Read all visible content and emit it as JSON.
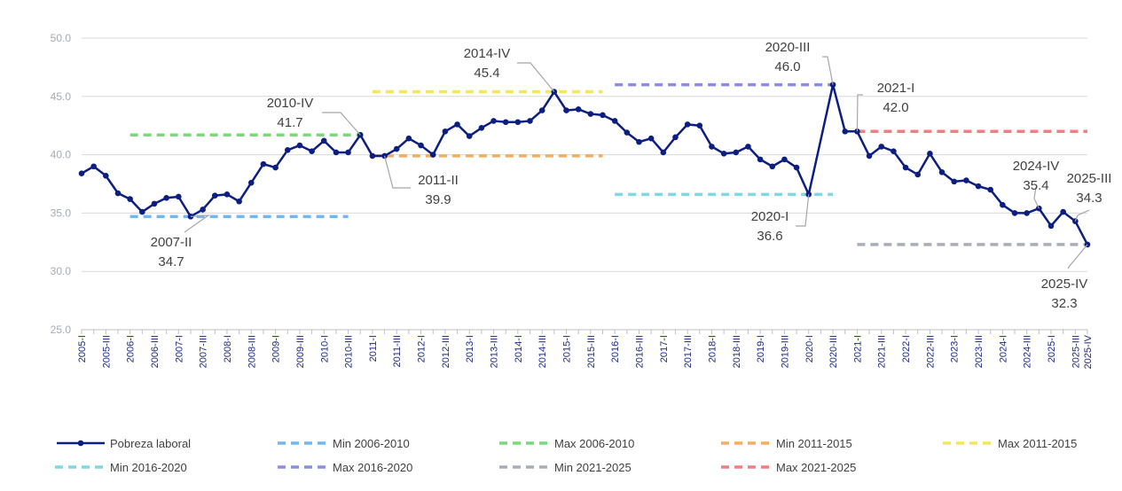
{
  "chart_data": {
    "type": "line",
    "title": "",
    "xlabel": "",
    "ylabel": "",
    "ylim": [
      25.0,
      50.0
    ],
    "yticks": [
      "25.0",
      "30.0",
      "35.0",
      "40.0",
      "45.0",
      "50.0"
    ],
    "grid": "horizontal",
    "legend_placement": "bottom",
    "categories": [
      "2005-I",
      "2005-II",
      "2005-III",
      "2005-IV",
      "2006-I",
      "2006-II",
      "2006-III",
      "2006-IV",
      "2007-I",
      "2007-II",
      "2007-III",
      "2007-IV",
      "2008-I",
      "2008-II",
      "2008-III",
      "2008-IV",
      "2009-I",
      "2009-II",
      "2009-III",
      "2009-IV",
      "2010-I",
      "2010-II",
      "2010-III",
      "2010-IV",
      "2011-I",
      "2011-II",
      "2011-III",
      "2011-IV",
      "2012-I",
      "2012-II",
      "2012-III",
      "2012-IV",
      "2013-I",
      "2013-II",
      "2013-III",
      "2013-IV",
      "2014-I",
      "2014-II",
      "2014-III",
      "2014-IV",
      "2015-I",
      "2015-II",
      "2015-III",
      "2015-IV",
      "2016-I",
      "2016-II",
      "2016-III",
      "2016-IV",
      "2017-I",
      "2017-II",
      "2017-III",
      "2017-IV",
      "2018-I",
      "2018-II",
      "2018-III",
      "2018-IV",
      "2019-I",
      "2019-II",
      "2019-III",
      "2019-IV",
      "2020-I",
      "2020-II",
      "2020-III",
      "2020-IV",
      "2021-I",
      "2021-II",
      "2021-III",
      "2021-IV",
      "2022-I",
      "2022-II",
      "2022-III",
      "2022-IV",
      "2023-I",
      "2023-II",
      "2023-III",
      "2023-IV",
      "2024-I",
      "2024-II",
      "2024-III",
      "2024-IV",
      "2025-I",
      "2025-II",
      "2025-III",
      "2025-IV"
    ],
    "xtick_labels": [
      "2005-I",
      "2005-III",
      "2006-I",
      "2006-III",
      "2007-I",
      "2007-III",
      "2008-I",
      "2008-III",
      "2009-I",
      "2009-III",
      "2010-I",
      "2010-III",
      "2011-I",
      "2011-III",
      "2012-I",
      "2012-III",
      "2013-I",
      "2013-III",
      "2014-I",
      "2014-III",
      "2015-I",
      "2015-III",
      "2016-I",
      "2016-III",
      "2017-I",
      "2017-III",
      "2018-I",
      "2018-III",
      "2019-I",
      "2019-III",
      "2020-I",
      "2020-III",
      "2021-I",
      "2021-III",
      "2022-I",
      "2022-III",
      "2023-I",
      "2023-III",
      "2024-I",
      "2024-III",
      "2025-I",
      "2025-III",
      "2025-IV"
    ],
    "series": [
      {
        "name": "Pobreza laboral",
        "color": "#0d1e82",
        "values": [
          38.4,
          39.0,
          38.2,
          36.7,
          36.2,
          35.1,
          35.8,
          36.3,
          36.4,
          34.7,
          35.3,
          36.5,
          36.6,
          36.0,
          37.6,
          39.2,
          38.9,
          40.4,
          40.8,
          40.3,
          41.2,
          40.2,
          40.2,
          41.7,
          39.9,
          39.9,
          40.5,
          41.4,
          40.8,
          40.0,
          42.0,
          42.6,
          41.6,
          42.3,
          42.9,
          42.8,
          42.8,
          42.9,
          43.8,
          45.4,
          43.8,
          43.9,
          43.5,
          43.4,
          42.9,
          41.9,
          41.1,
          41.4,
          40.2,
          41.5,
          42.6,
          42.5,
          40.7,
          40.1,
          40.2,
          40.7,
          39.6,
          39.0,
          39.6,
          38.9,
          36.6,
          null,
          46.0,
          42.0,
          42.0,
          39.9,
          40.7,
          40.3,
          38.9,
          38.3,
          40.1,
          38.5,
          37.7,
          37.8,
          37.3,
          37.0,
          35.7,
          35.0,
          35.0,
          35.4,
          33.9,
          35.1,
          34.3,
          32.3
        ]
      }
    ],
    "reference_lines": [
      {
        "name": "Min 2006-2010",
        "value": 34.7,
        "from": "2006-I",
        "to": "2010-III",
        "color": "#74b6f2"
      },
      {
        "name": "Max 2006-2010",
        "value": 41.7,
        "from": "2006-I",
        "to": "2010-IV",
        "color": "#7bd97b"
      },
      {
        "name": "Min 2011-2015",
        "value": 39.9,
        "from": "2011-I",
        "to": "2015-IV",
        "color": "#f5ae60"
      },
      {
        "name": "Max 2011-2015",
        "value": 45.4,
        "from": "2011-I",
        "to": "2015-IV",
        "color": "#f5e65a"
      },
      {
        "name": "Min 2016-2020",
        "value": 36.6,
        "from": "2016-I",
        "to": "2020-III",
        "color": "#7fd8e2"
      },
      {
        "name": "Max 2016-2020",
        "value": 46.0,
        "from": "2016-I",
        "to": "2020-III",
        "color": "#8a8de8"
      },
      {
        "name": "Min 2021-2025",
        "value": 32.3,
        "from": "2021-I",
        "to": "2025-IV",
        "color": "#a8aeb8"
      },
      {
        "name": "Max 2021-2025",
        "value": 42.0,
        "from": "2021-I",
        "to": "2025-IV",
        "color": "#f07f7f"
      }
    ],
    "annotations": [
      {
        "category": "2007-II",
        "label": "2007-II",
        "value": "34.7"
      },
      {
        "category": "2010-IV",
        "label": "2010-IV",
        "value": "41.7"
      },
      {
        "category": "2011-II",
        "label": "2011-II",
        "value": "39.9"
      },
      {
        "category": "2014-IV",
        "label": "2014-IV",
        "value": "45.4"
      },
      {
        "category": "2020-I",
        "label": "2020-I",
        "value": "36.6"
      },
      {
        "category": "2020-III",
        "label": "2020-III",
        "value": "46.0"
      },
      {
        "category": "2021-I",
        "label": "2021-I",
        "value": "42.0"
      },
      {
        "category": "2024-IV",
        "label": "2024-IV",
        "value": "35.4"
      },
      {
        "category": "2025-III",
        "label": "2025-III",
        "value": "34.3"
      },
      {
        "category": "2025-IV",
        "label": "2025-IV",
        "value": "32.3"
      }
    ]
  },
  "legend": [
    {
      "label": "Pobreza laboral",
      "color": "#0d1e82",
      "style": "line-marker"
    },
    {
      "label": "Min 2006-2010",
      "color": "#74b6f2",
      "style": "dashed"
    },
    {
      "label": "Max 2006-2010",
      "color": "#7bd97b",
      "style": "dashed"
    },
    {
      "label": "Min 2011-2015",
      "color": "#f5ae60",
      "style": "dashed"
    },
    {
      "label": "Max 2011-2015",
      "color": "#f5e65a",
      "style": "dashed"
    },
    {
      "label": "Min 2016-2020",
      "color": "#7fd8e2",
      "style": "dashed"
    },
    {
      "label": "Max 2016-2020",
      "color": "#8a8de8",
      "style": "dashed"
    },
    {
      "label": "Min 2021-2025",
      "color": "#a8aeb8",
      "style": "dashed"
    },
    {
      "label": "Max 2021-2025",
      "color": "#f07f7f",
      "style": "dashed"
    }
  ]
}
